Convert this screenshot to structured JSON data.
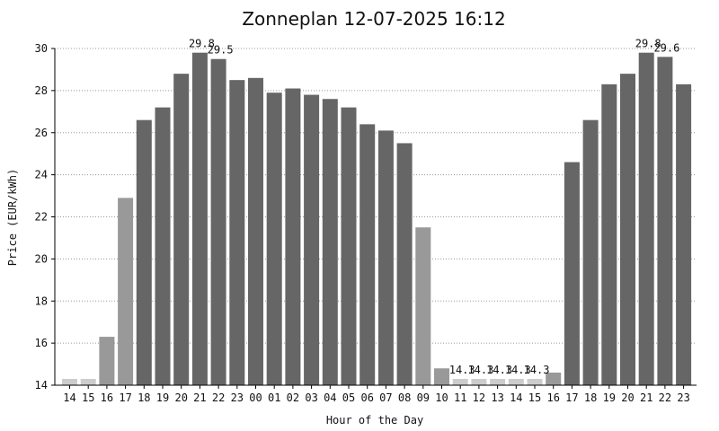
{
  "chart_data": {
    "type": "bar",
    "title": "Zonneplan 12-07-2025 16:12",
    "xlabel": "Hour of the Day",
    "ylabel": "Price (EUR/kWh)",
    "ylim": [
      14,
      30
    ],
    "yticks": [
      14,
      16,
      18,
      20,
      22,
      24,
      26,
      28,
      30
    ],
    "grid": true,
    "categories": [
      "14",
      "15",
      "16",
      "17",
      "18",
      "19",
      "20",
      "21",
      "22",
      "23",
      "00",
      "01",
      "02",
      "03",
      "04",
      "05",
      "06",
      "07",
      "08",
      "09",
      "10",
      "11",
      "12",
      "13",
      "14",
      "15",
      "16",
      "17",
      "18",
      "19",
      "20",
      "21",
      "22",
      "23"
    ],
    "values": [
      14.3,
      14.3,
      16.3,
      22.9,
      26.6,
      27.2,
      28.8,
      29.8,
      29.5,
      28.5,
      28.6,
      27.9,
      28.1,
      27.8,
      27.6,
      27.2,
      26.4,
      26.1,
      25.5,
      21.5,
      14.8,
      14.3,
      14.3,
      14.3,
      14.3,
      14.3,
      14.6,
      24.6,
      26.6,
      28.3,
      28.8,
      29.8,
      29.6,
      28.3
    ],
    "bar_levels": [
      "light",
      "light",
      "mid",
      "mid",
      "dark",
      "dark",
      "dark",
      "dark",
      "dark",
      "dark",
      "dark",
      "dark",
      "dark",
      "dark",
      "dark",
      "dark",
      "dark",
      "dark",
      "dark",
      "mid",
      "mid",
      "light",
      "light",
      "light",
      "light",
      "light",
      "mid",
      "dark",
      "dark",
      "dark",
      "dark",
      "dark",
      "dark",
      "dark"
    ],
    "data_labels": [
      {
        "index": 7,
        "text": "29.8"
      },
      {
        "index": 8,
        "text": "29.5"
      },
      {
        "index": 21,
        "text": "14.3"
      },
      {
        "index": 22,
        "text": "14.3"
      },
      {
        "index": 23,
        "text": "14.3"
      },
      {
        "index": 24,
        "text": "14.3"
      },
      {
        "index": 25,
        "text": "14.3"
      },
      {
        "index": 31,
        "text": "29.8"
      },
      {
        "index": 32,
        "text": "29.6"
      }
    ],
    "colors": {
      "dark": "#666666",
      "mid": "#999999",
      "light": "#cccccc",
      "background": "#ffffff"
    }
  }
}
